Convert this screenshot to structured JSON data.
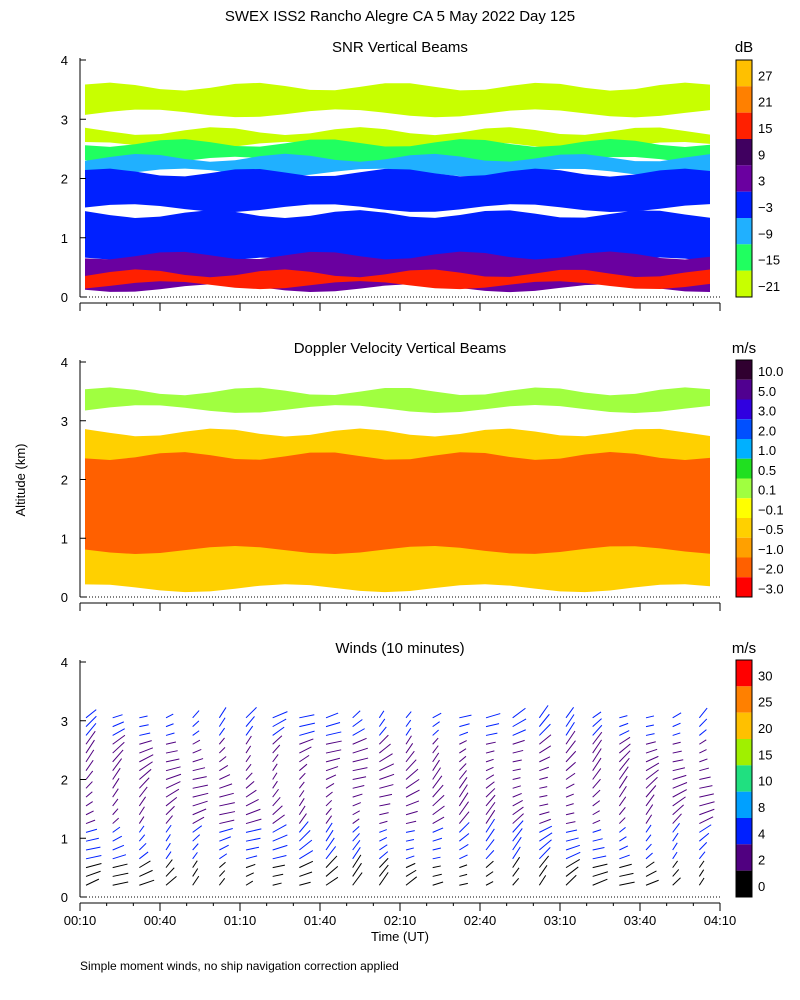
{
  "header": {
    "title": "SWEX ISS2 Rancho Alegre CA   5 May 2022 Day 125"
  },
  "footer": {
    "note": "Simple moment winds, no ship navigation correction applied"
  },
  "chart_data": [
    {
      "type": "heatmap",
      "title": "SNR Vertical Beams",
      "xlabel": "",
      "ylabel": "",
      "ylim": [
        0,
        4
      ],
      "yticks": [
        "0",
        "1",
        "2",
        "3",
        "4"
      ],
      "colorbar": {
        "unit": "dB",
        "labels": [
          "27",
          "21",
          "15",
          "9",
          "3",
          "−3",
          "−9",
          "−15",
          "−21"
        ],
        "colors": [
          "#ffc000",
          "#ff8000",
          "#ff2000",
          "#400060",
          "#6a00a0",
          "#0020ff",
          "#20b0ff",
          "#20ff60",
          "#c8ff00"
        ]
      },
      "layers": [
        {
          "range_km": [
            3.1,
            3.55
          ],
          "color": "#c8ff00"
        },
        {
          "range_km": [
            2.55,
            2.8
          ],
          "color": "#c8ff00"
        },
        {
          "range_km": [
            2.3,
            2.6
          ],
          "color": "#20ff60"
        },
        {
          "range_km": [
            2.1,
            2.35
          ],
          "color": "#20b0ff"
        },
        {
          "range_km": [
            1.5,
            2.1
          ],
          "color": "#0020ff"
        },
        {
          "range_km": [
            0.6,
            1.4
          ],
          "color": "#0020ff"
        },
        {
          "range_km": [
            0.15,
            0.7
          ],
          "color": "#6a00a0"
        },
        {
          "range_km": [
            0.2,
            0.4
          ],
          "color": "#ff2000"
        }
      ]
    },
    {
      "type": "heatmap",
      "title": "Doppler Velocity Vertical Beams",
      "xlabel": "",
      "ylabel": "Altitude (km)",
      "ylim": [
        0,
        4
      ],
      "yticks": [
        "0",
        "1",
        "2",
        "3",
        "4"
      ],
      "colorbar": {
        "unit": "m/s",
        "labels": [
          "10.0",
          "5.0",
          "3.0",
          "2.0",
          "1.0",
          "0.5",
          "0.1",
          "−0.1",
          "−0.5",
          "−1.0",
          "−2.0",
          "−3.0"
        ],
        "colors": [
          "#300030",
          "#500090",
          "#3000e0",
          "#0050ff",
          "#00b0ff",
          "#20e020",
          "#a0ff40",
          "#ffff00",
          "#ffd000",
          "#ffa000",
          "#ff6000",
          "#ff0000"
        ]
      },
      "layers": [
        {
          "range_km": [
            3.2,
            3.5
          ],
          "color": "#a0ff40"
        },
        {
          "range_km": [
            0.15,
            2.8
          ],
          "color": "#ffd000"
        },
        {
          "range_km": [
            0.8,
            2.4
          ],
          "color": "#ff6000"
        }
      ]
    },
    {
      "type": "wind_barbs",
      "title": "Winds (10 minutes)",
      "xlabel": "Time (UT)",
      "ylabel": "",
      "ylim": [
        0,
        4
      ],
      "yticks": [
        "0",
        "1",
        "2",
        "3",
        "4"
      ],
      "xticks": [
        "00:10",
        "00:40",
        "01:10",
        "01:40",
        "02:10",
        "02:40",
        "03:10",
        "03:40",
        "04:10"
      ],
      "profile_times_min": [
        10,
        20,
        30,
        40,
        50,
        60,
        70,
        80,
        90,
        100,
        110,
        120,
        130,
        140,
        150,
        160,
        170,
        180,
        190,
        200,
        210,
        220,
        230,
        240
      ],
      "colorbar": {
        "unit": "m/s",
        "labels": [
          "30",
          "25",
          "20",
          "15",
          "10",
          "8",
          "4",
          "2",
          "0"
        ],
        "colors": [
          "#ff0000",
          "#ff8000",
          "#ffc000",
          "#a0f000",
          "#20e080",
          "#00a0ff",
          "#0020ff",
          "#500080",
          "#000000"
        ]
      }
    }
  ],
  "time_axis": {
    "start_min": 10,
    "end_min": 250
  }
}
